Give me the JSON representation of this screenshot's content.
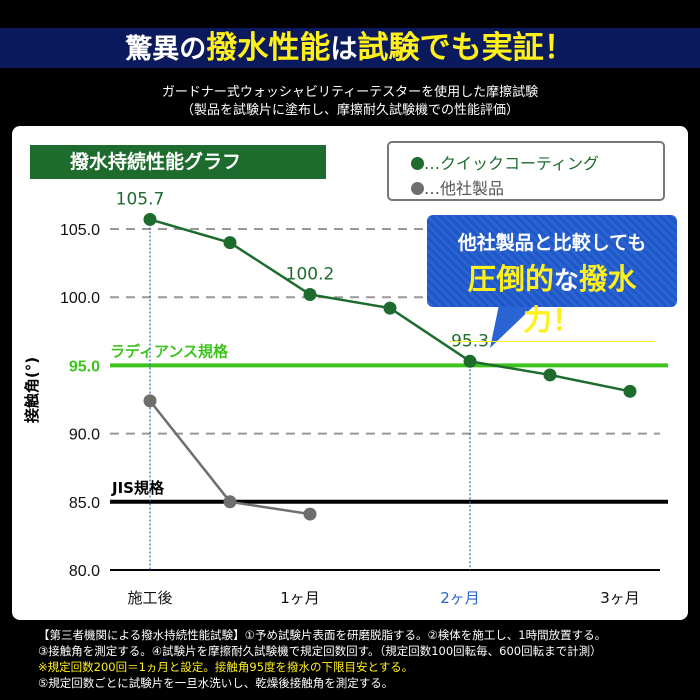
{
  "header": {
    "title_parts": [
      {
        "text": "驚異の",
        "hl": false
      },
      {
        "text": "撥水性能",
        "hl": true
      },
      {
        "text": "は",
        "hl": false
      },
      {
        "text": "試験でも実証！",
        "hl": true
      }
    ],
    "subtitle1": "ガードナー式ウォッシャビリティーテスターを使用した摩擦試験",
    "subtitle2": "（製品を試験片に塗布し、摩擦耐久試験機での性能評価）"
  },
  "callout": {
    "line1": "他社製品と比較しても",
    "line2_parts": [
      {
        "text": "圧倒的",
        "hl": true
      },
      {
        "text": "な",
        "hl": false
      },
      {
        "text": "撥水力！",
        "hl": true
      }
    ]
  },
  "colors": {
    "green": "#1e6b2e",
    "gray": "#6e6e6e",
    "radiance": "#3cc41c",
    "jis": "#000000",
    "accent_blue": "#2a63d2",
    "highlight_yellow": "#ffef1a"
  },
  "chart_data": {
    "type": "line",
    "title": "撥水持続性能グラフ",
    "ylabel": "接触角(°)",
    "ylim": [
      80,
      106.5
    ],
    "yticks": [
      "80.0",
      "85.0",
      "90.0",
      "95.0",
      "100.0",
      "105.0"
    ],
    "xticks": [
      {
        "x": 0,
        "label": "施工後"
      },
      {
        "x": 1,
        "label": "1ヶ月"
      },
      {
        "x": 2,
        "label": "2ヶ月"
      },
      {
        "x": 3,
        "label": "3ヶ月"
      }
    ],
    "x_unit": "months",
    "grid": "dashed horizontal",
    "legend": "top-right",
    "series": [
      {
        "name": "クイックコーティング",
        "color": "#1e6b2e",
        "x": [
          0,
          0.5,
          1,
          1.5,
          2,
          2.5,
          3
        ],
        "values": [
          105.7,
          104.0,
          100.2,
          99.2,
          95.3,
          94.3,
          93.1
        ],
        "labels": {
          "0": "105.7",
          "2": "100.2",
          "4": "95.3"
        }
      },
      {
        "name": "他社製品",
        "color": "#6e6e6e",
        "x": [
          0,
          0.5,
          1
        ],
        "values": [
          92.4,
          85.0,
          84.1
        ]
      }
    ],
    "reference_lines": [
      {
        "label": "ラディアンス規格",
        "value": 95.0,
        "color": "#3cc41c"
      },
      {
        "label": "JIS規格",
        "value": 85.0,
        "color": "#000000"
      }
    ],
    "legend_prefix": "…"
  },
  "notes": [
    "【第三者機関による撥水持続性能試験】①予め試験片表面を研磨脱脂する。②検体を施工し、1時間放置する。",
    "③接触角を測定する。④試験片を摩擦耐久試験機で規定回数回す。（規定回数100回転毎、600回転まで計測）",
    "※規定回数200回＝1ヵ月と設定。接触角95度を撥水の下限目安とする。",
    "⑤規定回数ごとに試験片を一旦水洗いし、乾燥後接触角を測定する。"
  ]
}
